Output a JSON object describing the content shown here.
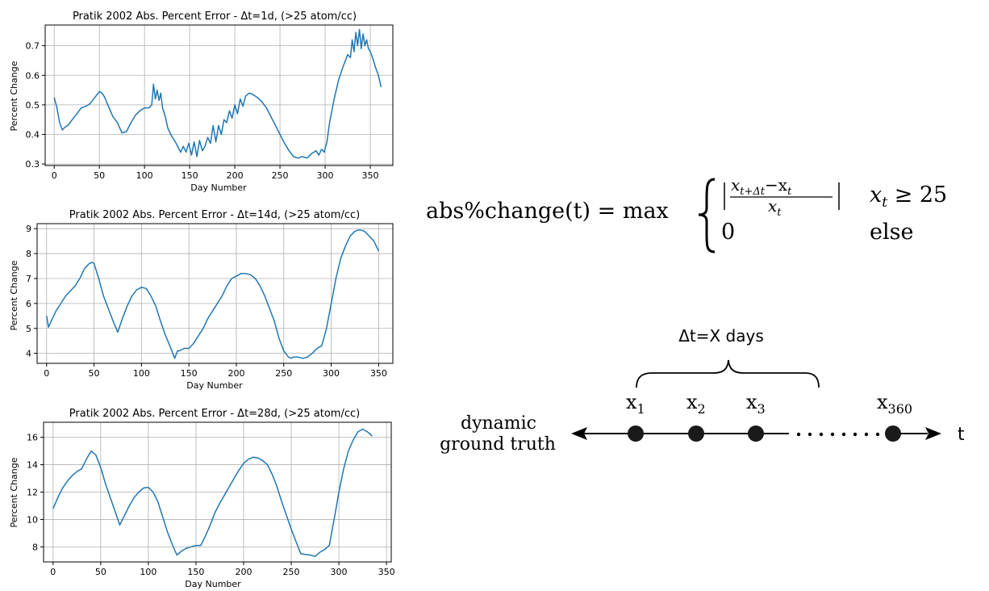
{
  "chart_data": [
    {
      "type": "line",
      "title": "Pratik 2002 Abs. Percent Error - Δt=1d, (>25 atom/cc)",
      "xlabel": "Day Number",
      "ylabel": "Percent Change",
      "xlim": [
        -10,
        375
      ],
      "ylim": [
        0.295,
        0.77
      ],
      "xticks": [
        0,
        50,
        100,
        150,
        200,
        250,
        300,
        350
      ],
      "yticks": [
        0.3,
        0.4,
        0.5,
        0.6,
        0.7
      ],
      "ytick_format": "1",
      "grid": true,
      "series": [
        {
          "x": [
            0,
            3,
            6,
            9,
            12,
            15,
            20,
            25,
            30,
            35,
            40,
            45,
            50,
            53,
            56,
            60,
            65,
            70,
            75,
            80,
            85,
            90,
            95,
            100,
            105,
            108,
            110,
            112,
            114,
            116,
            118,
            120,
            123,
            126,
            130,
            135,
            140,
            143,
            146,
            149,
            152,
            155,
            158,
            161,
            164,
            167,
            170,
            173,
            176,
            179,
            182,
            185,
            188,
            191,
            194,
            197,
            200,
            203,
            206,
            209,
            212,
            216,
            220,
            225,
            230,
            235,
            240,
            245,
            250,
            255,
            260,
            265,
            270,
            275,
            280,
            285,
            290,
            293,
            296,
            299,
            302,
            305,
            310,
            315,
            320,
            325,
            328,
            330,
            332,
            334,
            336,
            338,
            340,
            342,
            344,
            346,
            348,
            350,
            353,
            356,
            359,
            362
          ],
          "values": [
            0.525,
            0.49,
            0.44,
            0.415,
            0.425,
            0.43,
            0.45,
            0.47,
            0.49,
            0.495,
            0.505,
            0.525,
            0.545,
            0.54,
            0.525,
            0.495,
            0.46,
            0.44,
            0.405,
            0.41,
            0.44,
            0.465,
            0.48,
            0.49,
            0.49,
            0.5,
            0.57,
            0.52,
            0.55,
            0.515,
            0.54,
            0.49,
            0.46,
            0.42,
            0.395,
            0.37,
            0.34,
            0.36,
            0.34,
            0.37,
            0.33,
            0.375,
            0.325,
            0.38,
            0.345,
            0.36,
            0.39,
            0.37,
            0.43,
            0.375,
            0.43,
            0.4,
            0.45,
            0.44,
            0.48,
            0.455,
            0.5,
            0.47,
            0.52,
            0.495,
            0.53,
            0.54,
            0.535,
            0.525,
            0.51,
            0.49,
            0.46,
            0.43,
            0.4,
            0.37,
            0.345,
            0.325,
            0.32,
            0.325,
            0.32,
            0.335,
            0.345,
            0.33,
            0.35,
            0.34,
            0.375,
            0.44,
            0.52,
            0.585,
            0.63,
            0.67,
            0.66,
            0.72,
            0.68,
            0.745,
            0.7,
            0.755,
            0.69,
            0.74,
            0.7,
            0.72,
            0.69,
            0.68,
            0.655,
            0.625,
            0.6,
            0.56
          ]
        }
      ]
    },
    {
      "type": "line",
      "title": "Pratik 2002 Abs. Percent Error - Δt=14d, (>25 atom/cc)",
      "xlabel": "Day Number",
      "ylabel": "Percent Change",
      "xlim": [
        -10,
        365
      ],
      "ylim": [
        3.6,
        9.2
      ],
      "xticks": [
        0,
        50,
        100,
        150,
        200,
        250,
        300,
        350
      ],
      "yticks": [
        4,
        5,
        6,
        7,
        8,
        9
      ],
      "ytick_format": "0",
      "grid": true,
      "series": [
        {
          "x": [
            0,
            2,
            5,
            10,
            15,
            20,
            25,
            30,
            35,
            40,
            45,
            48,
            50,
            55,
            60,
            65,
            70,
            75,
            80,
            85,
            90,
            95,
            100,
            105,
            110,
            115,
            120,
            125,
            130,
            135,
            138,
            140,
            145,
            150,
            155,
            160,
            165,
            170,
            175,
            180,
            185,
            190,
            195,
            200,
            205,
            210,
            215,
            220,
            225,
            230,
            235,
            240,
            245,
            250,
            255,
            258,
            260,
            265,
            270,
            275,
            280,
            285,
            290,
            295,
            300,
            305,
            310,
            315,
            320,
            325,
            330,
            335,
            340,
            345,
            350
          ],
          "values": [
            5.5,
            5.05,
            5.3,
            5.7,
            6.0,
            6.3,
            6.5,
            6.7,
            7.0,
            7.4,
            7.6,
            7.65,
            7.6,
            7.0,
            6.3,
            5.8,
            5.3,
            4.85,
            5.4,
            5.9,
            6.3,
            6.55,
            6.65,
            6.6,
            6.3,
            5.9,
            5.3,
            4.75,
            4.3,
            3.8,
            4.1,
            4.1,
            4.2,
            4.2,
            4.4,
            4.7,
            5.0,
            5.4,
            5.7,
            6.0,
            6.3,
            6.7,
            7.0,
            7.1,
            7.2,
            7.2,
            7.15,
            7.0,
            6.7,
            6.3,
            5.8,
            5.3,
            4.6,
            4.1,
            3.85,
            3.8,
            3.85,
            3.85,
            3.8,
            3.85,
            4.0,
            4.2,
            4.3,
            5.0,
            6.0,
            7.0,
            7.8,
            8.3,
            8.7,
            8.9,
            8.95,
            8.9,
            8.7,
            8.5,
            8.1
          ]
        }
      ]
    },
    {
      "type": "line",
      "title": "Pratik 2002 Abs. Percent Error - Δt=28d, (>25 atom/cc)",
      "xlabel": "Day Number",
      "ylabel": "Percent Change",
      "xlim": [
        -10,
        355
      ],
      "ylim": [
        6.9,
        17.1
      ],
      "xticks": [
        0,
        50,
        100,
        150,
        200,
        250,
        300,
        350
      ],
      "yticks": [
        8,
        10,
        12,
        14,
        16
      ],
      "ytick_format": "0",
      "grid": true,
      "series": [
        {
          "x": [
            0,
            5,
            10,
            15,
            20,
            25,
            30,
            35,
            40,
            45,
            50,
            55,
            60,
            65,
            70,
            75,
            80,
            85,
            90,
            95,
            100,
            105,
            110,
            115,
            120,
            125,
            130,
            135,
            140,
            145,
            150,
            155,
            160,
            165,
            170,
            175,
            180,
            185,
            190,
            195,
            200,
            205,
            210,
            215,
            220,
            225,
            230,
            235,
            240,
            245,
            250,
            255,
            260,
            265,
            270,
            275,
            280,
            285,
            290,
            295,
            300,
            305,
            310,
            315,
            320,
            325,
            330,
            335
          ],
          "values": [
            10.8,
            11.6,
            12.3,
            12.8,
            13.2,
            13.5,
            13.7,
            14.4,
            15.0,
            14.7,
            13.8,
            12.6,
            11.6,
            10.6,
            9.6,
            10.3,
            11.0,
            11.6,
            12.0,
            12.3,
            12.35,
            12.0,
            11.3,
            10.2,
            9.1,
            8.2,
            7.4,
            7.7,
            7.9,
            8.0,
            8.1,
            8.1,
            8.8,
            9.6,
            10.5,
            11.2,
            11.8,
            12.4,
            13.0,
            13.6,
            14.1,
            14.4,
            14.55,
            14.5,
            14.3,
            14.0,
            13.3,
            12.4,
            11.3,
            10.3,
            9.3,
            8.4,
            7.5,
            7.45,
            7.4,
            7.3,
            7.6,
            7.8,
            8.1,
            10.0,
            12.0,
            13.7,
            15.0,
            15.8,
            16.4,
            16.6,
            16.4,
            16.1
          ]
        }
      ]
    }
  ],
  "formula": {
    "lhs": "abs%change(t) = max",
    "case1_numerator": "x",
    "case1_numerator_sub": "t+Δt",
    "case1_minus": "−x",
    "case1_minus_sub": "t",
    "case1_denominator": "x",
    "case1_denominator_sub": "t",
    "case1_condition": "x",
    "case1_condition_sub": "t",
    "case1_condition_rest": " ≥ 25",
    "case2_value": "0",
    "case2_condition": "else"
  },
  "timeline": {
    "interval_label": "Δt=X days",
    "caption_line1": "dynamic",
    "caption_line2": "ground truth",
    "axis_label": "t",
    "points": [
      {
        "label": "x",
        "sub": "1"
      },
      {
        "label": "x",
        "sub": "2"
      },
      {
        "label": "x",
        "sub": "3"
      },
      {
        "label": "x",
        "sub": "360"
      }
    ],
    "colors": {
      "points": "#1a1a1a",
      "line": "#000000"
    }
  }
}
